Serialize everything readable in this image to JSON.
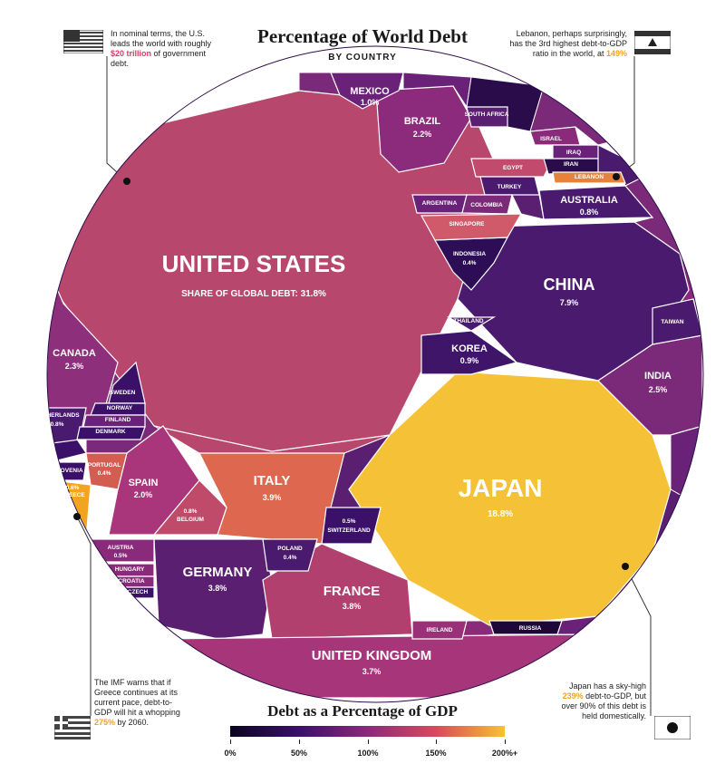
{
  "title": "Percentage of World Debt",
  "subtitle": "BY COUNTRY",
  "notes": {
    "us": {
      "pre": "In nominal terms, the U.S. leads the world with roughly ",
      "highlight": "$20 trillion",
      "post": " of government debt."
    },
    "lebanon": {
      "pre": "Lebanon, perhaps surprisingly, has the 3rd highest debt-to-GDP ratio in the world, at ",
      "highlight": "149%"
    },
    "greece": {
      "pre": "The IMF warns that if Greece continues at its current pace, debt-to-GDP will hit a whopping ",
      "highlight": "275%",
      "post": " by 2060."
    },
    "japan": {
      "pre": "Japan has a sky-high ",
      "highlight": "239%",
      "post": " debt-to-GDP, but over 90% of this debt is held domestically."
    }
  },
  "legend": {
    "title": "Debt as a Percentage of GDP",
    "ticks": [
      "0%",
      "50%",
      "100%",
      "150%",
      "200%+"
    ],
    "colors": [
      "#0b0420",
      "#3a1068",
      "#8a2a7a",
      "#d74a5e",
      "#f6c232"
    ]
  },
  "chart_data": {
    "type": "voronoi_treemap",
    "title": "Percentage of World Debt",
    "subtitle": "BY COUNTRY",
    "value_label": "SHARE OF GLOBAL DEBT",
    "color_scale": "Debt as a Percentage of GDP",
    "items": [
      {
        "name": "UNITED STATES",
        "share": "31.8%",
        "color": "#b8476d"
      },
      {
        "name": "JAPAN",
        "share": "18.8%",
        "color": "#f5c136"
      },
      {
        "name": "CHINA",
        "share": "7.9%",
        "color": "#4a1a6e"
      },
      {
        "name": "ITALY",
        "share": "3.9%",
        "color": "#de6750"
      },
      {
        "name": "GERMANY",
        "share": "3.8%",
        "color": "#5a1f70"
      },
      {
        "name": "FRANCE",
        "share": "3.8%",
        "color": "#b1406f"
      },
      {
        "name": "UNITED KINGDOM",
        "share": "3.7%",
        "color": "#a6357a"
      },
      {
        "name": "INDIA",
        "share": "2.5%",
        "color": "#7a2a78"
      },
      {
        "name": "CANADA",
        "share": "2.3%",
        "color": "#8e2f7c"
      },
      {
        "name": "BRAZIL",
        "share": "2.2%",
        "color": "#8c2b7c"
      },
      {
        "name": "SPAIN",
        "share": "2.0%",
        "color": "#a9357a"
      },
      {
        "name": "MEXICO",
        "share": "1.0%",
        "color": "#6a2278"
      },
      {
        "name": "KOREA",
        "share": "0.9%",
        "color": "#3e1568"
      },
      {
        "name": "AUSTRALIA",
        "share": "0.8%",
        "color": "#4a1a6e"
      },
      {
        "name": "NETHERLANDS",
        "share": "0.8%",
        "color": "#4a1a6e"
      },
      {
        "name": "BELGIUM",
        "share": "0.8%",
        "color": "#c04a6a"
      },
      {
        "name": "GREECE",
        "share": "0.6%",
        "color": "#f2a320"
      },
      {
        "name": "AUSTRIA",
        "share": "0.5%",
        "color": "#8a2a7a"
      },
      {
        "name": "SWITZERLAND",
        "share": "0.5%",
        "color": "#3a1068"
      },
      {
        "name": "INDONESIA",
        "share": "0.4%",
        "color": "#2c0d56"
      },
      {
        "name": "PORTUGAL",
        "share": "0.4%",
        "color": "#d45d52"
      },
      {
        "name": "POLAND",
        "share": "0.4%",
        "color": "#4a1a6e"
      },
      {
        "name": "SOUTH AFRICA",
        "share": "",
        "color": "#5a1f70"
      },
      {
        "name": "ISRAEL",
        "share": "",
        "color": "#8a2a7a"
      },
      {
        "name": "IRAQ",
        "share": "",
        "color": "#6a2278"
      },
      {
        "name": "EGYPT",
        "share": "",
        "color": "#c24a6c"
      },
      {
        "name": "IRAN",
        "share": "",
        "color": "#2a0c4a"
      },
      {
        "name": "TURKEY",
        "share": "",
        "color": "#4a1a6e"
      },
      {
        "name": "LEBANON",
        "share": "",
        "color": "#e8823a"
      },
      {
        "name": "ARGENTINA",
        "share": "",
        "color": "#6a2278"
      },
      {
        "name": "COLOMBIA",
        "share": "",
        "color": "#7a2a78"
      },
      {
        "name": "SINGAPORE",
        "share": "",
        "color": "#d05a6a"
      },
      {
        "name": "THAILAND",
        "share": "",
        "color": "#4a1a6e"
      },
      {
        "name": "TAIWAN",
        "share": "",
        "color": "#4a1a6e"
      },
      {
        "name": "SWEDEN",
        "share": "",
        "color": "#3a1068"
      },
      {
        "name": "NORWAY",
        "share": "",
        "color": "#3a1068"
      },
      {
        "name": "FINLAND",
        "share": "",
        "color": "#6a2278"
      },
      {
        "name": "DENMARK",
        "share": "",
        "color": "#3a1068"
      },
      {
        "name": "SLOVENIA",
        "share": "",
        "color": "#3a1068"
      },
      {
        "name": "HUNGARY",
        "share": "",
        "color": "#8a2a7a"
      },
      {
        "name": "CROATIA",
        "share": "",
        "color": "#8a2a7a"
      },
      {
        "name": "CZECH",
        "share": "",
        "color": "#3a1068"
      },
      {
        "name": "IRELAND",
        "share": "",
        "color": "#9a3078"
      },
      {
        "name": "RUSSIA",
        "share": "",
        "color": "#1e0838"
      }
    ]
  }
}
